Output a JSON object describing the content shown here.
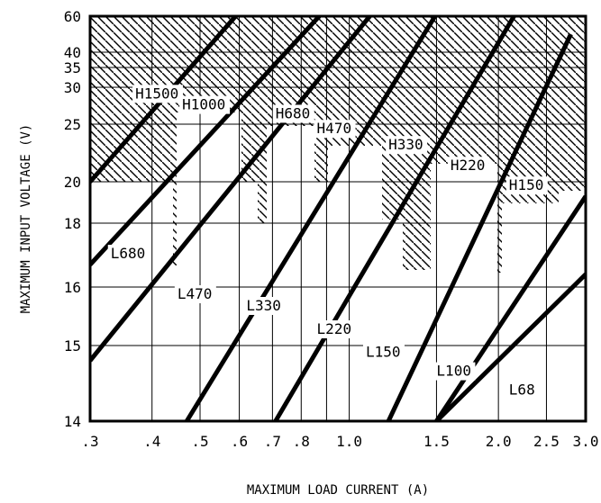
{
  "chart_data": {
    "type": "line",
    "title": "",
    "xlabel": "MAXIMUM LOAD CURRENT (A)",
    "ylabel": "MAXIMUM INPUT VOLTAGE (V)",
    "x_scale": "log",
    "y_scale": "nonlinear",
    "xlim": [
      0.3,
      3.0
    ],
    "x_ticks": [
      {
        "value": 0.3,
        "label": ".3"
      },
      {
        "value": 0.4,
        "label": ".4"
      },
      {
        "value": 0.5,
        "label": ".5"
      },
      {
        "value": 0.6,
        "label": ".6"
      },
      {
        "value": 0.7,
        "label": ".7"
      },
      {
        "value": 0.8,
        "label": ".8"
      },
      {
        "value": 1.0,
        "label": "1.0"
      },
      {
        "value": 1.5,
        "label": "1.5"
      },
      {
        "value": 2.0,
        "label": "2.0"
      },
      {
        "value": 2.5,
        "label": "2.5"
      },
      {
        "value": 3.0,
        "label": "3.0"
      }
    ],
    "x_minor_gridlines": [
      0.9
    ],
    "y_ticks": [
      {
        "value": 14,
        "label": "14"
      },
      {
        "value": 15,
        "label": "15"
      },
      {
        "value": 16,
        "label": "16"
      },
      {
        "value": 18,
        "label": "18"
      },
      {
        "value": 20,
        "label": "20"
      },
      {
        "value": 25,
        "label": "25"
      },
      {
        "value": 30,
        "label": "30"
      },
      {
        "value": 35,
        "label": "35"
      },
      {
        "value": 40,
        "label": "40"
      },
      {
        "value": 60,
        "label": "60"
      }
    ],
    "grid": true,
    "hatched_region": "above H-series boundary (cannot be used)",
    "series": [
      {
        "name": "H1500",
        "label_at": [
          0.37,
          28.5
        ],
        "x": [
          0.3,
          0.59
        ],
        "y": [
          20,
          60
        ]
      },
      {
        "name": "H1000",
        "label_at": [
          0.46,
          27.0
        ],
        "x": [
          0.3,
          0.87
        ],
        "y": [
          16.7,
          60
        ]
      },
      {
        "name": "H680",
        "label_at": [
          0.71,
          25.8
        ],
        "x": [
          0.3,
          1.1
        ],
        "y": [
          14.8,
          60
        ]
      },
      {
        "name": "H470",
        "label_at": [
          0.86,
          24.2
        ],
        "x": [
          0.47,
          1.49
        ],
        "y": [
          14,
          60
        ]
      },
      {
        "name": "H330",
        "label_at": [
          1.2,
          22.8
        ],
        "x": [
          0.71,
          2.15
        ],
        "y": [
          14,
          60
        ]
      },
      {
        "name": "H220",
        "label_at": [
          1.6,
          21.0
        ],
        "x": [
          1.2,
          2.8
        ],
        "y": [
          14,
          50
        ]
      },
      {
        "name": "H150",
        "label_at": [
          2.1,
          19.6
        ],
        "x": [
          1.5,
          3.0
        ],
        "y": [
          14,
          19.3
        ]
      },
      {
        "name": "L680",
        "label_at": [
          0.33,
          16.9
        ]
      },
      {
        "name": "L470",
        "label_at": [
          0.45,
          15.8
        ]
      },
      {
        "name": "L330",
        "label_at": [
          0.62,
          15.6
        ]
      },
      {
        "name": "L220",
        "label_at": [
          0.86,
          15.2
        ]
      },
      {
        "name": "L150",
        "label_at": [
          1.08,
          14.85
        ]
      },
      {
        "name": "L100",
        "label_at": [
          1.5,
          14.6
        ]
      },
      {
        "name": "L68",
        "label_at": [
          2.1,
          14.35
        ],
        "x": [
          1.5,
          3.0
        ],
        "y": [
          14,
          16.4
        ]
      }
    ]
  }
}
